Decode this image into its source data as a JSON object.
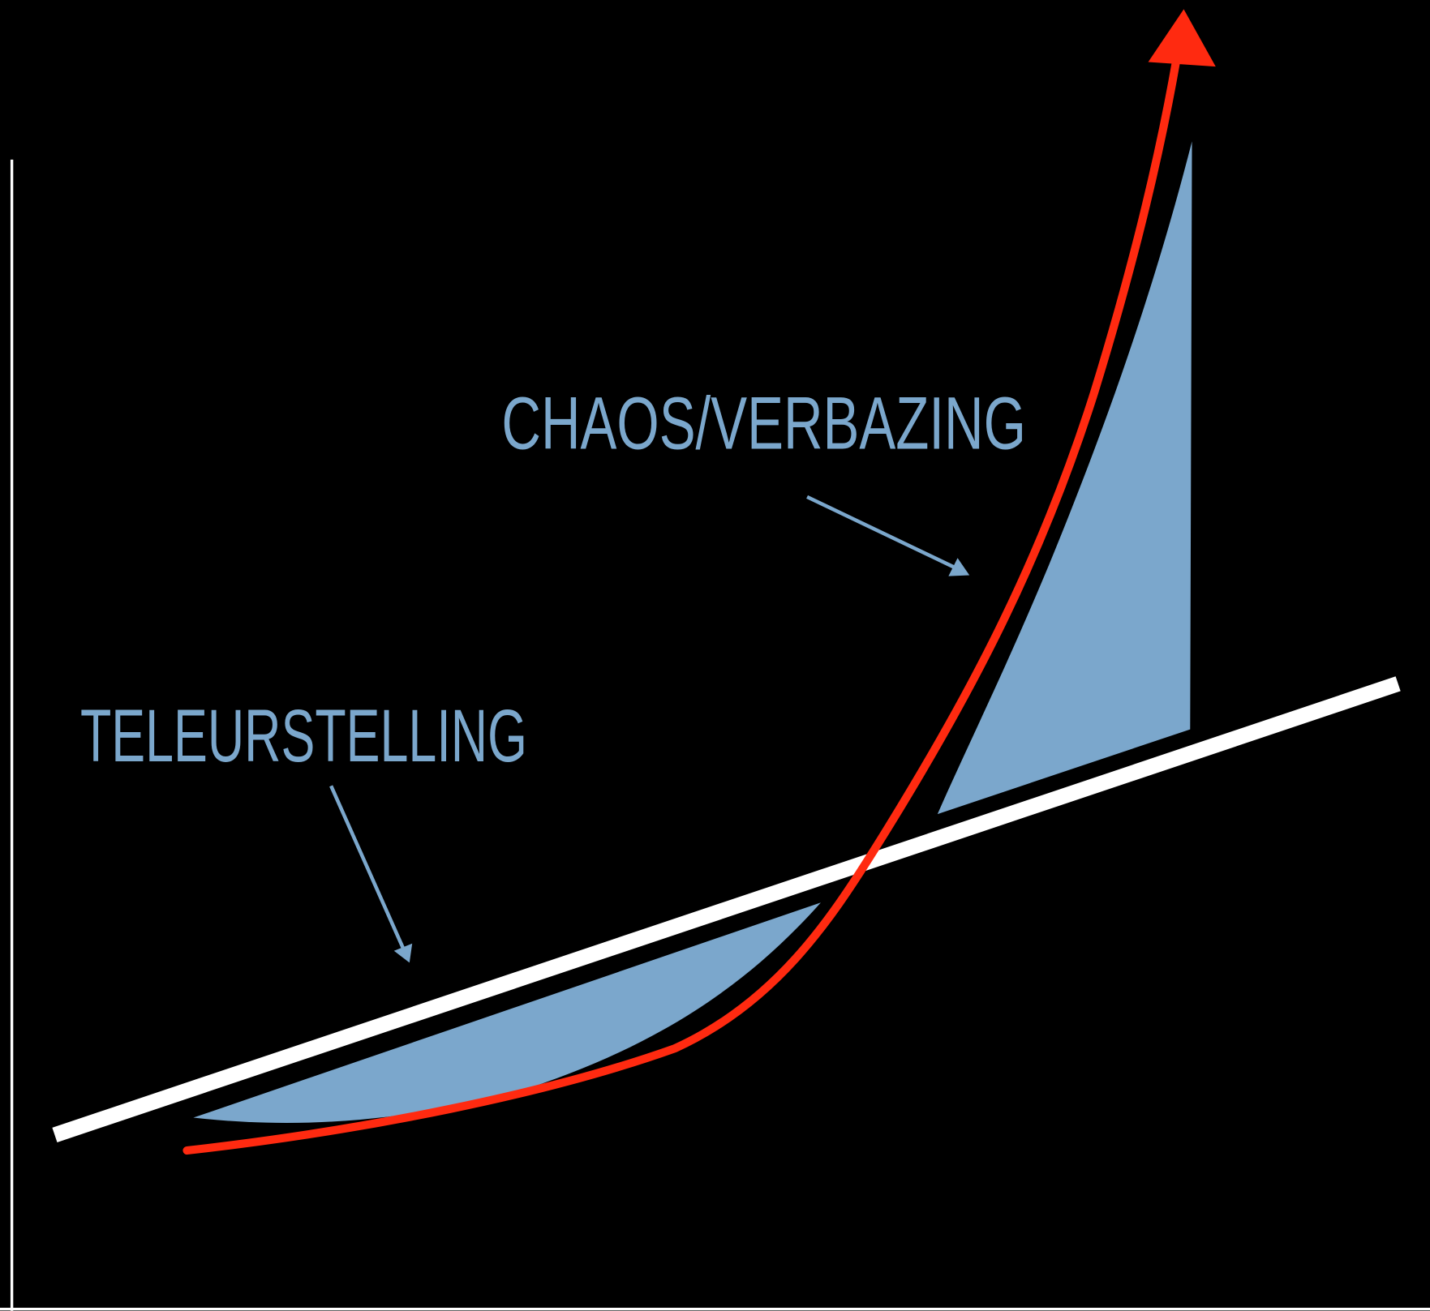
{
  "labels": {
    "top": "CHAOS/VERBAZING",
    "bottom": "TELEURSTELLING"
  }
}
